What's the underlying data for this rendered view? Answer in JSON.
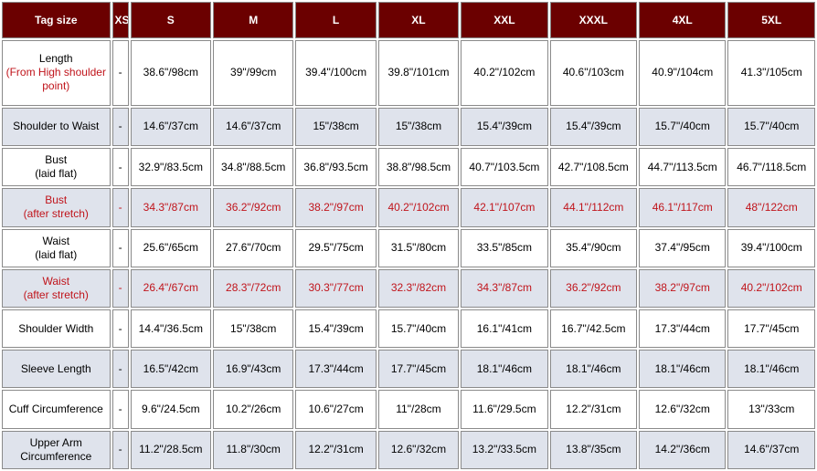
{
  "headers": [
    "Tag size",
    "XS",
    "S",
    "M",
    "L",
    "XL",
    "XXL",
    "XXXL",
    "4XL",
    "5XL"
  ],
  "rows": [
    {
      "label": [
        "Length",
        "(From High shoulder point)"
      ],
      "style": "plain",
      "label_sub_red": true,
      "values": [
        "-",
        "38.6\"/98cm",
        "39\"/99cm",
        "39.4\"/100cm",
        "39.8\"/101cm",
        "40.2\"/102cm",
        "40.6\"/103cm",
        "40.9\"/104cm",
        "41.3\"/105cm"
      ]
    },
    {
      "label": [
        "Shoulder to Waist"
      ],
      "style": "alt",
      "values": [
        "-",
        "14.6\"/37cm",
        "14.6\"/37cm",
        "15\"/38cm",
        "15\"/38cm",
        "15.4\"/39cm",
        "15.4\"/39cm",
        "15.7\"/40cm",
        "15.7\"/40cm"
      ]
    },
    {
      "label": [
        "Bust",
        "(laid flat)"
      ],
      "style": "plain",
      "values": [
        "-",
        "32.9\"/83.5cm",
        "34.8\"/88.5cm",
        "36.8\"/93.5cm",
        "38.8\"/98.5cm",
        "40.7\"/103.5cm",
        "42.7\"/108.5cm",
        "44.7\"/113.5cm",
        "46.7\"/118.5cm"
      ]
    },
    {
      "label": [
        "Bust",
        "(after stretch)"
      ],
      "style": "alt",
      "red": true,
      "values": [
        "-",
        "34.3\"/87cm",
        "36.2\"/92cm",
        "38.2\"/97cm",
        "40.2\"/102cm",
        "42.1\"/107cm",
        "44.1\"/112cm",
        "46.1\"/117cm",
        "48\"/122cm"
      ]
    },
    {
      "label": [
        "Waist",
        "(laid flat)"
      ],
      "style": "plain",
      "values": [
        "-",
        "25.6\"/65cm",
        "27.6\"/70cm",
        "29.5\"/75cm",
        "31.5\"/80cm",
        "33.5\"/85cm",
        "35.4\"/90cm",
        "37.4\"/95cm",
        "39.4\"/100cm"
      ]
    },
    {
      "label": [
        "Waist",
        "(after stretch)"
      ],
      "style": "alt",
      "red": true,
      "values": [
        "-",
        "26.4\"/67cm",
        "28.3\"/72cm",
        "30.3\"/77cm",
        "32.3\"/82cm",
        "34.3\"/87cm",
        "36.2\"/92cm",
        "38.2\"/97cm",
        "40.2\"/102cm"
      ]
    },
    {
      "label": [
        "Shoulder Width"
      ],
      "style": "plain",
      "values": [
        "-",
        "14.4\"/36.5cm",
        "15\"/38cm",
        "15.4\"/39cm",
        "15.7\"/40cm",
        "16.1\"/41cm",
        "16.7\"/42.5cm",
        "17.3\"/44cm",
        "17.7\"/45cm"
      ]
    },
    {
      "label": [
        "Sleeve Length"
      ],
      "style": "alt",
      "values": [
        "-",
        "16.5\"/42cm",
        "16.9\"/43cm",
        "17.3\"/44cm",
        "17.7\"/45cm",
        "18.1\"/46cm",
        "18.1\"/46cm",
        "18.1\"/46cm",
        "18.1\"/46cm"
      ]
    },
    {
      "label": [
        "Cuff Circumference"
      ],
      "style": "plain",
      "values": [
        "-",
        "9.6\"/24.5cm",
        "10.2\"/26cm",
        "10.6\"/27cm",
        "11\"/28cm",
        "11.6\"/29.5cm",
        "12.2\"/31cm",
        "12.6\"/32cm",
        "13\"/33cm"
      ]
    },
    {
      "label": [
        "Upper Arm",
        "Circumference"
      ],
      "style": "alt",
      "values": [
        "-",
        "11.2\"/28.5cm",
        "11.8\"/30cm",
        "12.2\"/31cm",
        "12.6\"/32cm",
        "13.2\"/33.5cm",
        "13.8\"/35cm",
        "14.2\"/36cm",
        "14.6\"/37cm"
      ]
    }
  ],
  "colors": {
    "header_bg": "#6b0000",
    "header_text": "#ffffff",
    "alt_row_bg": "#dfe3ec",
    "highlight_text": "#c0141b"
  }
}
